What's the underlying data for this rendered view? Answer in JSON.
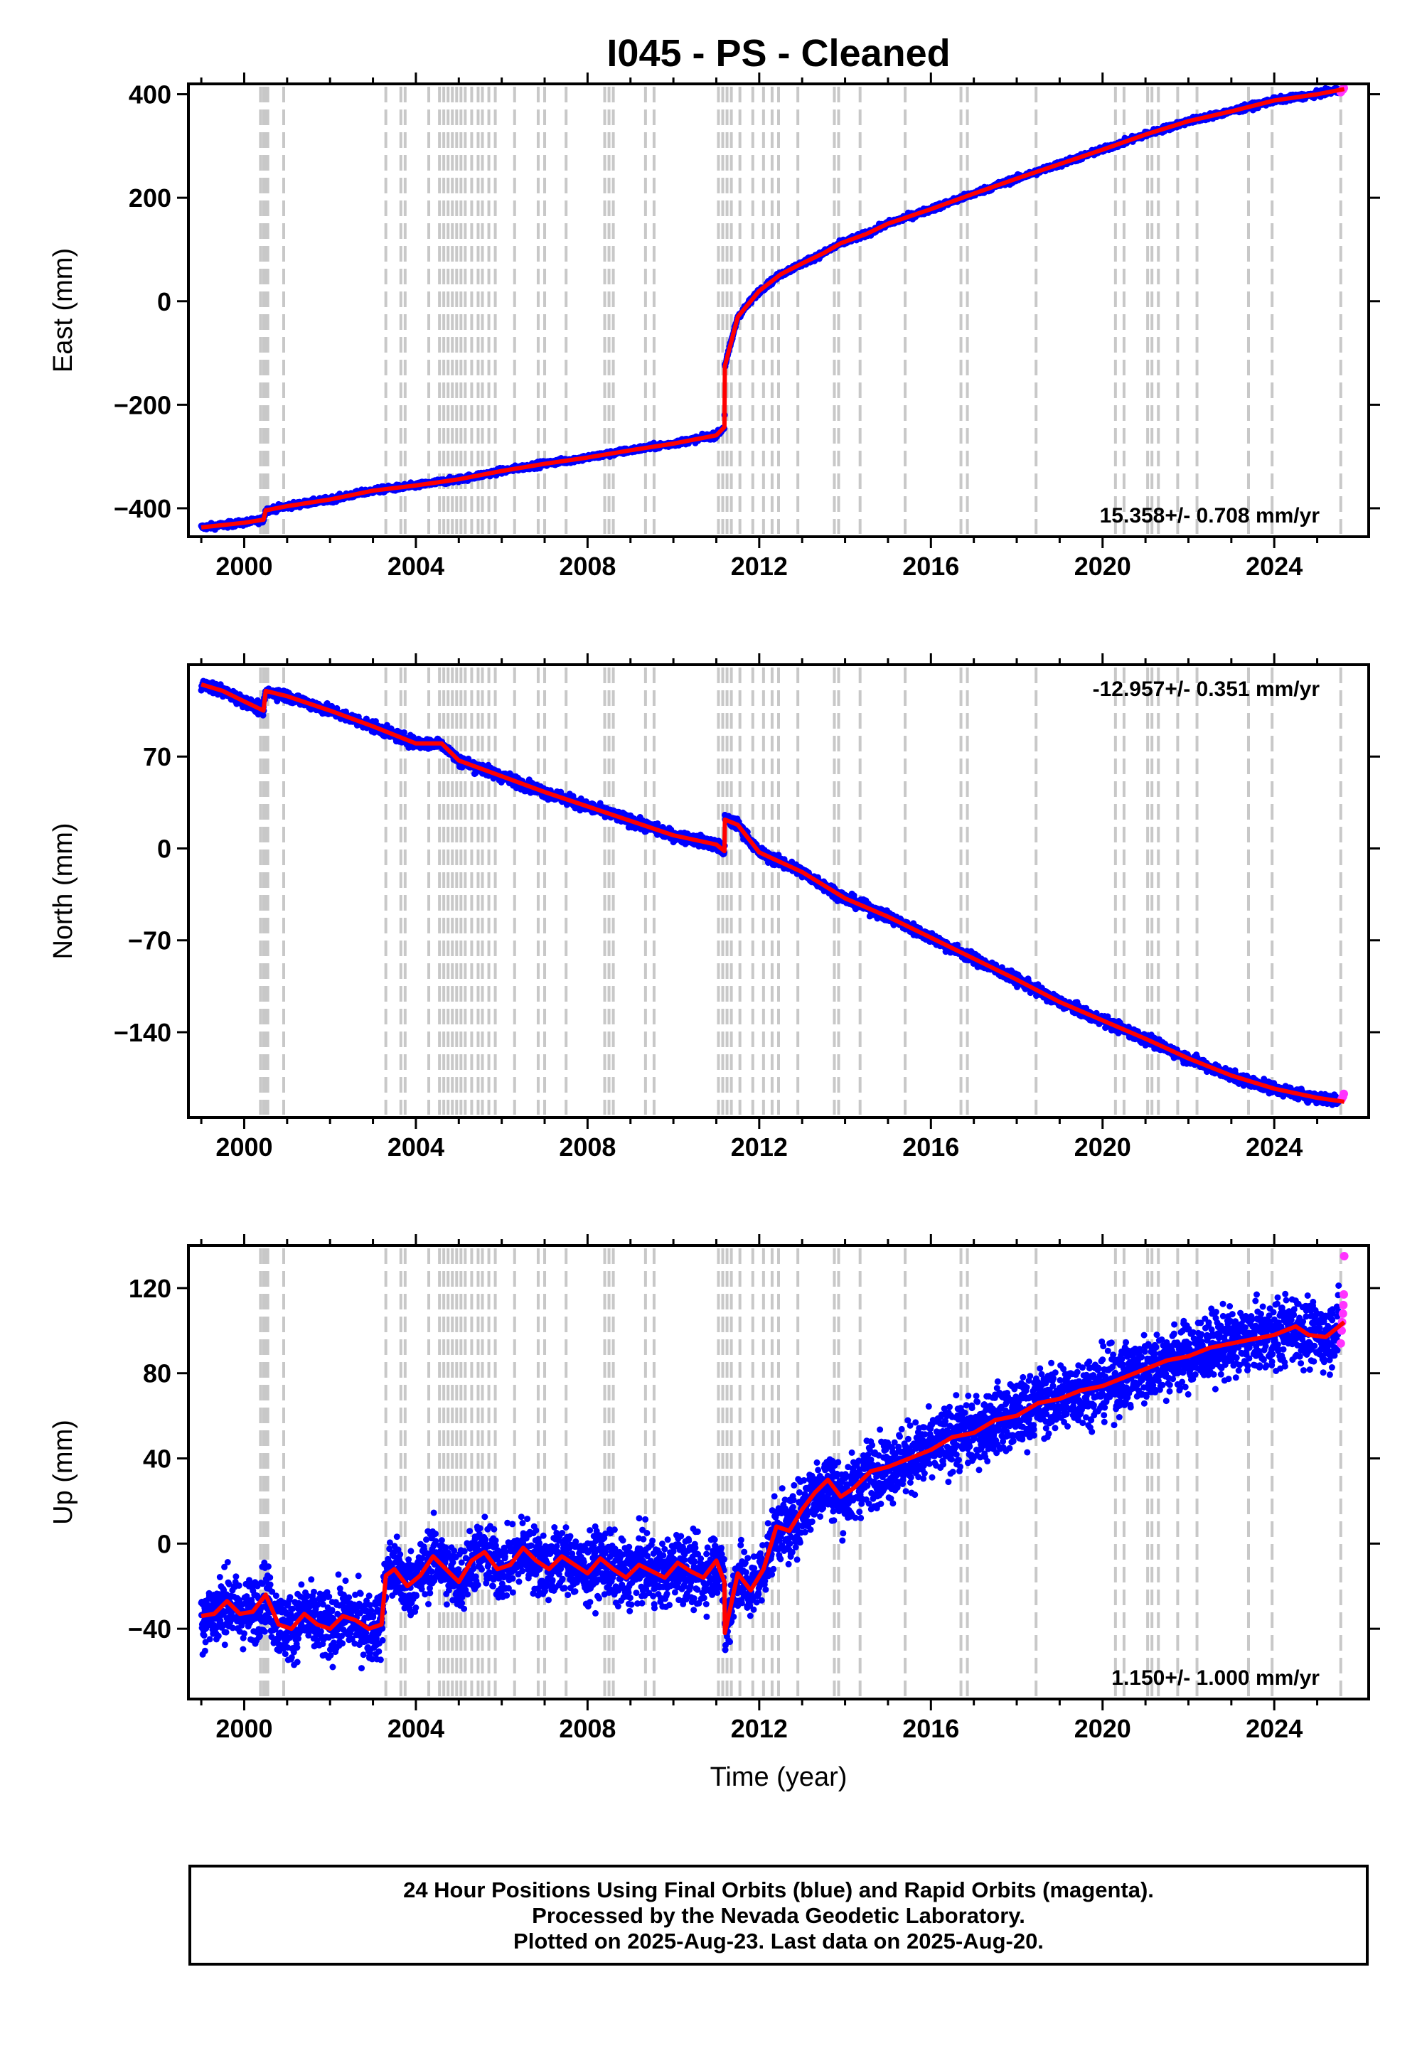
{
  "title": "I045  - PS - Cleaned",
  "footer": {
    "line1": "24 Hour Positions Using Final Orbits (blue) and Rapid Orbits (magenta).",
    "line2": "Processed by the Nevada Geodetic Laboratory.",
    "line3": "Plotted on 2025-Aug-23. Last data on 2025-Aug-20."
  },
  "colors": {
    "final_orbits": "#0000ff",
    "rapid_orbits": "#ff33ff",
    "model": "#ff0000",
    "event_lines": "#c8c8c8"
  },
  "chart_data": [
    {
      "type": "scatter",
      "name": "east",
      "ylabel": "East (mm)",
      "xlabel": "",
      "rate": "15.358+/- 0.708 mm/yr",
      "rate_position": "bottom-right",
      "xlim": [
        1998.7,
        2026.2
      ],
      "ylim": [
        -455,
        420
      ],
      "xticks": [
        2000,
        2004,
        2008,
        2012,
        2016,
        2020,
        2024
      ],
      "yticks": [
        -400,
        -200,
        0,
        200,
        400
      ],
      "model": {
        "x": [
          1999.0,
          2000.0,
          2000.45,
          2000.5,
          2001.0,
          2002.0,
          2003.0,
          2004.0,
          2005.0,
          2006.0,
          2007.0,
          2008.0,
          2009.0,
          2010.0,
          2011.0,
          2011.19,
          2011.2,
          2011.5,
          2012.0,
          2012.5,
          2013.0,
          2013.5,
          2013.9,
          2014.5,
          2015.0,
          2016.0,
          2017.0,
          2018.0,
          2019.0,
          2020.0,
          2021.0,
          2022.0,
          2023.0,
          2024.0,
          2025.0,
          2025.63
        ],
        "y": [
          -437,
          -428,
          -422,
          -404,
          -396,
          -383,
          -366,
          -356,
          -344,
          -328,
          -314,
          -302,
          -288,
          -275,
          -259,
          -243,
          -125,
          -30,
          20,
          52,
          73,
          93,
          112,
          130,
          150,
          178,
          208,
          237,
          265,
          293,
          322,
          348,
          367,
          388,
          400,
          410
        ]
      },
      "final_scatter_mm": 4,
      "rapid": {
        "x": [
          2025.55,
          2025.58,
          2025.6,
          2025.62
        ],
        "y": [
          404,
          408,
          409,
          412
        ]
      }
    },
    {
      "type": "scatter",
      "name": "north",
      "ylabel": "North (mm)",
      "xlabel": "",
      "rate": "-12.957+/- 0.351 mm/yr",
      "rate_position": "top-right",
      "xlim": [
        1998.7,
        2026.2
      ],
      "ylim": [
        -205,
        140
      ],
      "xticks": [
        2000,
        2004,
        2008,
        2012,
        2016,
        2020,
        2024
      ],
      "yticks": [
        -140,
        -70,
        0,
        70
      ],
      "model": {
        "x": [
          1999.0,
          1999.5,
          2000.0,
          2000.45,
          2000.5,
          2001.0,
          2002.0,
          2003.0,
          2004.0,
          2004.6,
          2005.0,
          2006.0,
          2007.0,
          2008.0,
          2009.0,
          2010.0,
          2011.0,
          2011.19,
          2011.2,
          2011.5,
          2012.0,
          2013.0,
          2014.0,
          2015.0,
          2016.0,
          2017.0,
          2018.0,
          2019.0,
          2020.0,
          2021.0,
          2022.0,
          2023.0,
          2024.0,
          2025.0,
          2025.63
        ],
        "y": [
          125,
          120,
          112,
          105,
          120,
          116,
          105,
          93,
          80,
          80,
          67,
          55,
          43,
          32,
          21,
          10,
          3,
          -2,
          22,
          18,
          -3,
          -18,
          -38,
          -52,
          -68,
          -84,
          -100,
          -117,
          -131,
          -145,
          -160,
          -173,
          -183,
          -190,
          -193
        ]
      },
      "final_scatter_mm": 3,
      "rapid": {
        "x": [
          2025.57,
          2025.6,
          2025.62
        ],
        "y": [
          -191,
          -189,
          -187
        ]
      }
    },
    {
      "type": "scatter",
      "name": "up",
      "ylabel": "Up (mm)",
      "xlabel": "Time (year)",
      "rate": "1.150+/- 1.000 mm/yr",
      "rate_position": "bottom-right",
      "xlim": [
        1998.7,
        2026.2
      ],
      "ylim": [
        -73,
        140
      ],
      "xticks": [
        2000,
        2004,
        2008,
        2012,
        2016,
        2020,
        2024
      ],
      "yticks": [
        -40,
        0,
        40,
        80,
        120
      ],
      "model": {
        "x": [
          1999.0,
          1999.3,
          1999.6,
          1999.9,
          2000.2,
          2000.5,
          2000.8,
          2001.1,
          2001.4,
          2001.7,
          2002.0,
          2002.3,
          2002.6,
          2002.9,
          2003.2,
          2003.3,
          2003.5,
          2003.8,
          2004.1,
          2004.4,
          2004.7,
          2005.0,
          2005.3,
          2005.6,
          2005.9,
          2006.2,
          2006.5,
          2006.8,
          2007.1,
          2007.4,
          2007.7,
          2008.0,
          2008.3,
          2008.6,
          2008.9,
          2009.2,
          2009.5,
          2009.8,
          2010.1,
          2010.4,
          2010.7,
          2011.0,
          2011.19,
          2011.2,
          2011.5,
          2011.8,
          2012.1,
          2012.4,
          2012.7,
          2013.0,
          2013.3,
          2013.6,
          2013.9,
          2014.2,
          2014.6,
          2015.0,
          2015.5,
          2016.0,
          2016.5,
          2017.0,
          2017.5,
          2018.0,
          2018.5,
          2019.0,
          2019.5,
          2020.0,
          2020.5,
          2021.0,
          2021.5,
          2022.0,
          2022.5,
          2023.0,
          2023.5,
          2024.0,
          2024.5,
          2024.8,
          2025.2,
          2025.63
        ],
        "y": [
          -34,
          -33,
          -27,
          -33,
          -32,
          -24,
          -38,
          -40,
          -33,
          -38,
          -40,
          -34,
          -36,
          -40,
          -38,
          -15,
          -12,
          -20,
          -15,
          -6,
          -12,
          -18,
          -8,
          -4,
          -12,
          -10,
          -2,
          -8,
          -12,
          -6,
          -10,
          -14,
          -7,
          -12,
          -16,
          -10,
          -13,
          -16,
          -9,
          -13,
          -16,
          -8,
          -18,
          -42,
          -14,
          -22,
          -12,
          8,
          6,
          16,
          24,
          30,
          22,
          26,
          34,
          36,
          40,
          44,
          50,
          52,
          58,
          60,
          66,
          68,
          72,
          74,
          78,
          82,
          86,
          88,
          92,
          94,
          96,
          98,
          102,
          98,
          97,
          104
        ]
      },
      "final_scatter_mm": 11,
      "rapid": {
        "x": [
          2025.55,
          2025.57,
          2025.58,
          2025.6,
          2025.61,
          2025.62,
          2025.63
        ],
        "y": [
          94,
          100,
          104,
          108,
          112,
          117,
          135
        ]
      }
    }
  ],
  "event_lines_years": [
    2000.38,
    2000.45,
    2000.5,
    2000.55,
    2000.92,
    2003.3,
    2003.65,
    2003.75,
    2004.3,
    2004.55,
    2004.65,
    2004.75,
    2004.85,
    2004.95,
    2005.05,
    2005.15,
    2005.3,
    2005.45,
    2005.55,
    2005.7,
    2005.85,
    2006.3,
    2006.85,
    2007.0,
    2007.5,
    2008.4,
    2008.5,
    2008.6,
    2009.35,
    2009.55,
    2011.05,
    2011.15,
    2011.25,
    2011.35,
    2011.55,
    2011.85,
    2012.1,
    2012.3,
    2012.45,
    2012.9,
    2013.75,
    2013.85,
    2014.35,
    2015.4,
    2016.7,
    2016.85,
    2018.45,
    2020.3,
    2020.5,
    2021.05,
    2021.15,
    2021.3,
    2021.75,
    2022.2,
    2023.4,
    2023.95,
    2025.55
  ]
}
